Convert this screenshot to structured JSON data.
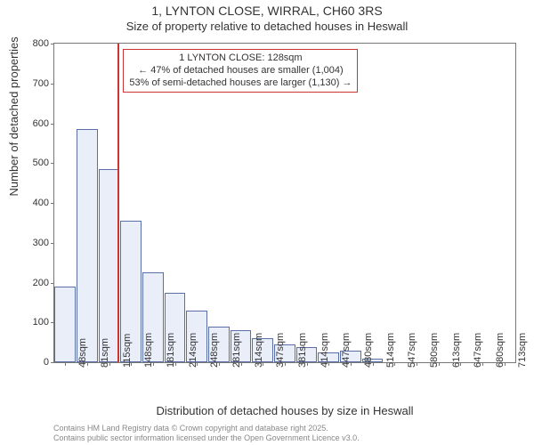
{
  "title_line1": "1, LYNTON CLOSE, WIRRAL, CH60 3RS",
  "title_line2": "Size of property relative to detached houses in Heswall",
  "ylabel": "Number of detached properties",
  "xlabel": "Distribution of detached houses by size in Heswall",
  "chart": {
    "type": "bar",
    "x_labels": [
      "48sqm",
      "81sqm",
      "115sqm",
      "148sqm",
      "181sqm",
      "214sqm",
      "248sqm",
      "281sqm",
      "314sqm",
      "347sqm",
      "381sqm",
      "414sqm",
      "447sqm",
      "480sqm",
      "514sqm",
      "547sqm",
      "580sqm",
      "613sqm",
      "647sqm",
      "680sqm",
      "713sqm"
    ],
    "values": [
      190,
      585,
      486,
      355,
      225,
      175,
      130,
      90,
      80,
      60,
      45,
      38,
      25,
      30,
      10,
      0,
      0,
      0,
      0,
      0,
      0
    ],
    "ylim": [
      0,
      800
    ],
    "ytick_step": 100,
    "bar_fill": "#e9eef9",
    "bar_border": "#5a6fa8",
    "plot_border": "#777777",
    "background": "#ffffff"
  },
  "reference_line": {
    "x_value_sqm": 128,
    "color": "#cc3333"
  },
  "annotation": {
    "line1": "1 LYNTON CLOSE: 128sqm",
    "line2": "← 47% of detached houses are smaller (1,004)",
    "line3": "53% of semi-detached houses are larger (1,130) →",
    "border_color": "#cc3333"
  },
  "attribution": {
    "line1": "Contains HM Land Registry data © Crown copyright and database right 2025.",
    "line2": "Contains public sector information licensed under the Open Government Licence v3.0."
  }
}
